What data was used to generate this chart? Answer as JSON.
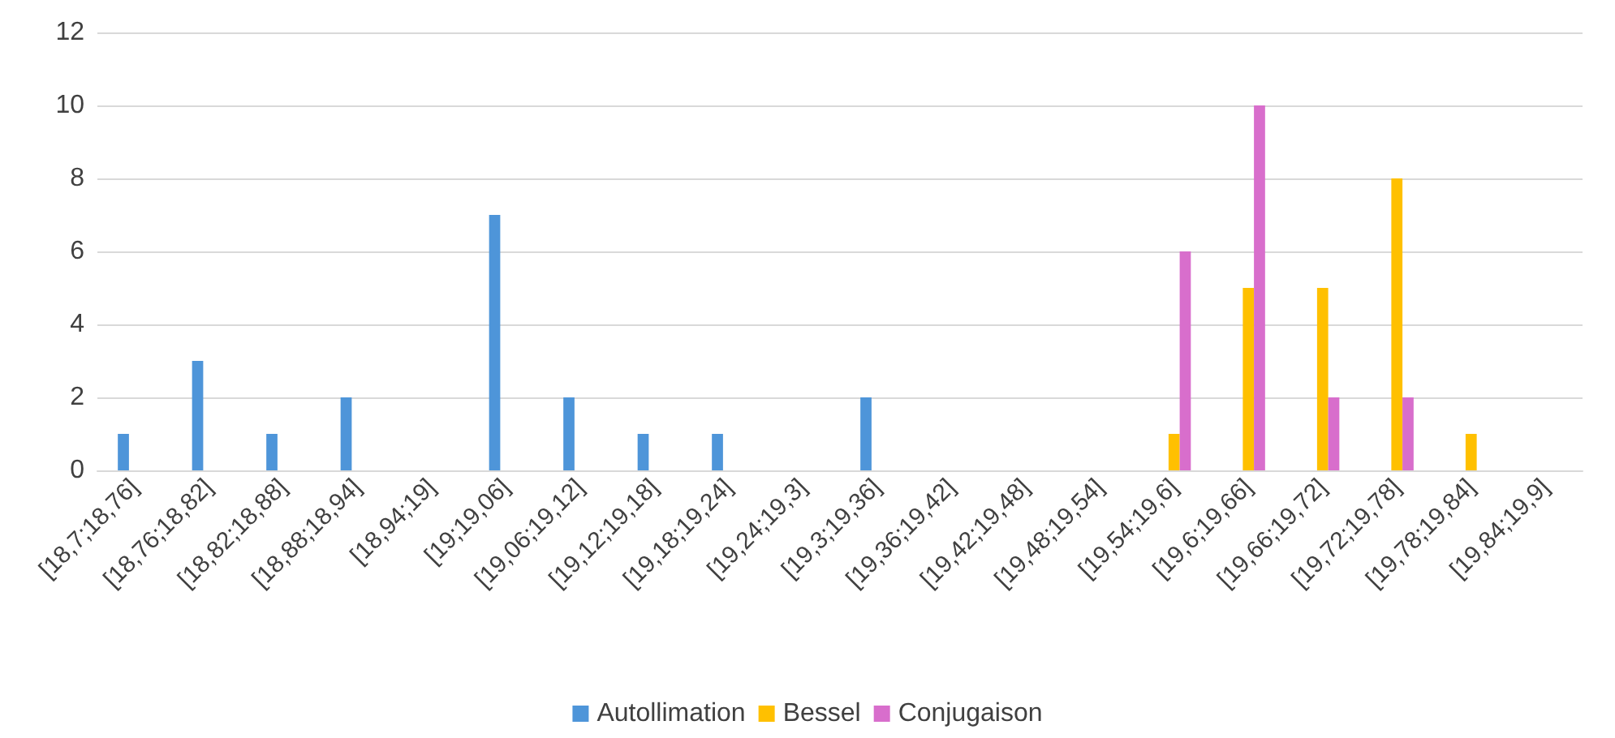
{
  "chart_data": {
    "type": "bar",
    "categories": [
      "[18,7;18,76]",
      "[18,76;18,82]",
      "[18,82;18,88]",
      "[18,88;18,94]",
      "[18,94;19]",
      "[19;19,06]",
      "[19,06;19,12]",
      "[19,12;19,18]",
      "[19,18;19,24]",
      "[19,24;19,3]",
      "[19,3;19,36]",
      "[19,36;19,42]",
      "[19,42;19,48]",
      "[19,48;19,54]",
      "[19,54;19,6]",
      "[19,6;19,66]",
      "[19,66;19,72]",
      "[19,72;19,78]",
      "[19,78;19,84]",
      "[19,84;19,9]"
    ],
    "series": [
      {
        "name": "Autollimation",
        "color": "#4e95d9",
        "values": [
          1,
          3,
          1,
          2,
          0,
          7,
          2,
          1,
          1,
          0,
          2,
          0,
          0,
          0,
          0,
          0,
          0,
          0,
          0,
          0
        ]
      },
      {
        "name": "Bessel",
        "color": "#ffc000",
        "values": [
          0,
          0,
          0,
          0,
          0,
          0,
          0,
          0,
          0,
          0,
          0,
          0,
          0,
          0,
          1,
          5,
          5,
          8,
          1,
          0
        ]
      },
      {
        "name": "Conjugaison",
        "color": "#d86ecc",
        "values": [
          0,
          0,
          0,
          0,
          0,
          0,
          0,
          0,
          0,
          0,
          0,
          0,
          0,
          0,
          6,
          10,
          2,
          2,
          0,
          0
        ]
      }
    ],
    "ylim": [
      0,
      12
    ],
    "yticks": [
      0,
      2,
      4,
      6,
      8,
      10,
      12
    ],
    "grid": "y",
    "legend": "bottom"
  }
}
